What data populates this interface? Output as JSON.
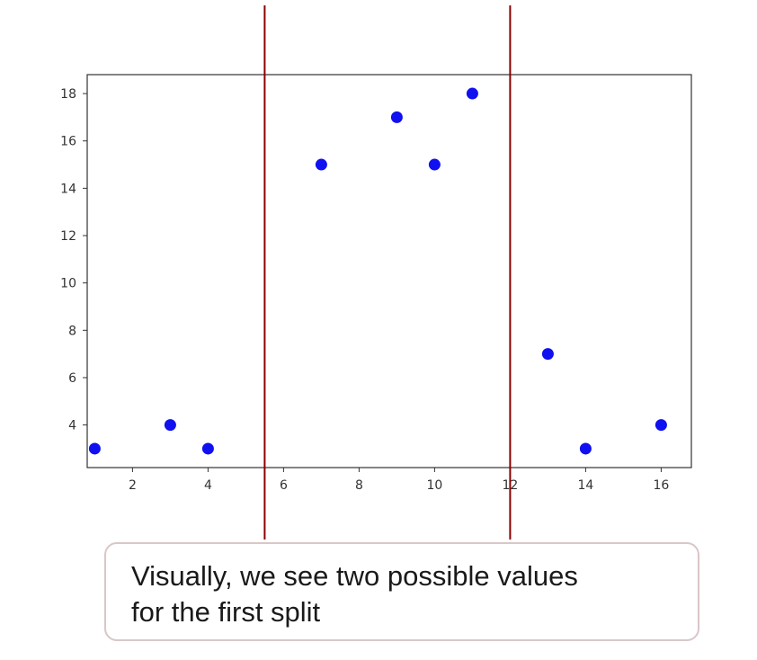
{
  "chart_data": {
    "type": "scatter",
    "title": "",
    "xlabel": "",
    "ylabel": "",
    "xlim": [
      0.8,
      16.8
    ],
    "ylim": [
      2.2,
      18.8
    ],
    "x_ticks": [
      2,
      4,
      6,
      8,
      10,
      12,
      14,
      16
    ],
    "y_ticks": [
      4,
      6,
      8,
      10,
      12,
      14,
      16,
      18
    ],
    "grid": false,
    "points": [
      {
        "x": 1,
        "y": 3
      },
      {
        "x": 3,
        "y": 4
      },
      {
        "x": 4,
        "y": 3
      },
      {
        "x": 7,
        "y": 15
      },
      {
        "x": 9,
        "y": 17
      },
      {
        "x": 10,
        "y": 15
      },
      {
        "x": 11,
        "y": 18
      },
      {
        "x": 13,
        "y": 7
      },
      {
        "x": 14,
        "y": 3
      },
      {
        "x": 16,
        "y": 4
      }
    ],
    "point_color": "#1010f0",
    "split_lines": [
      {
        "x": 5.5,
        "color": "#8b0000"
      },
      {
        "x": 12,
        "color": "#8b0000"
      }
    ]
  },
  "callout": {
    "text": "Visually, we see two possible values\nfor the first split"
  }
}
